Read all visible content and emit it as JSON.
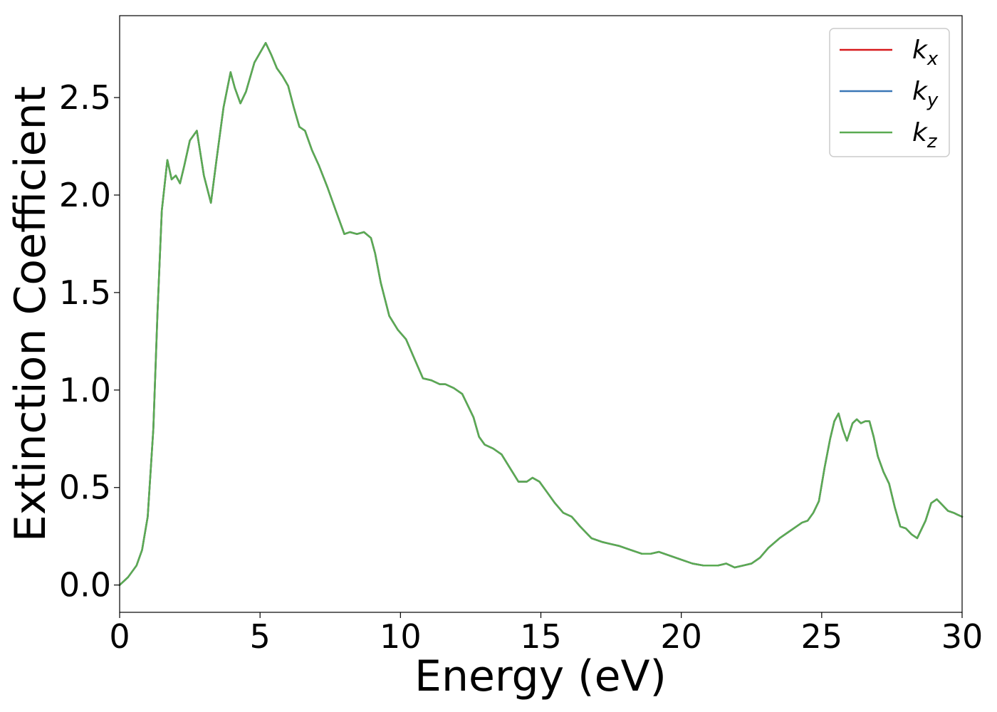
{
  "chart_data": {
    "type": "line",
    "xlabel": "Energy (eV)",
    "ylabel": "Extinction Coefficient",
    "xlim": [
      0,
      30
    ],
    "ylim": [
      -0.14,
      2.92
    ],
    "xticks": [
      0,
      5,
      10,
      15,
      20,
      25,
      30
    ],
    "xtick_labels": [
      "0",
      "5",
      "10",
      "15",
      "20",
      "25",
      "30"
    ],
    "yticks": [
      0.0,
      0.5,
      1.0,
      1.5,
      2.0,
      2.5
    ],
    "ytick_labels": [
      "0.0",
      "0.5",
      "1.0",
      "1.5",
      "2.0",
      "2.5"
    ],
    "grid": false,
    "legend_position": "top-right",
    "x": [
      0,
      0.3,
      0.6,
      0.8,
      1.0,
      1.2,
      1.35,
      1.5,
      1.7,
      1.85,
      2.0,
      2.15,
      2.3,
      2.5,
      2.75,
      3.0,
      3.25,
      3.45,
      3.7,
      3.95,
      4.1,
      4.3,
      4.5,
      4.8,
      5.0,
      5.2,
      5.4,
      5.6,
      5.8,
      6.0,
      6.2,
      6.4,
      6.6,
      6.85,
      7.1,
      7.4,
      7.7,
      8.0,
      8.2,
      8.45,
      8.7,
      8.95,
      9.1,
      9.3,
      9.6,
      9.9,
      10.2,
      10.5,
      10.8,
      11.1,
      11.4,
      11.6,
      11.9,
      12.2,
      12.6,
      12.8,
      13.0,
      13.3,
      13.6,
      13.9,
      14.2,
      14.5,
      14.7,
      14.95,
      15.2,
      15.5,
      15.8,
      16.1,
      16.4,
      16.8,
      17.2,
      17.5,
      17.8,
      18.2,
      18.6,
      18.9,
      19.2,
      19.6,
      20.0,
      20.4,
      20.8,
      21.1,
      21.3,
      21.6,
      21.9,
      22.2,
      22.5,
      22.8,
      23.1,
      23.5,
      23.8,
      24.1,
      24.3,
      24.5,
      24.7,
      24.9,
      25.1,
      25.3,
      25.45,
      25.6,
      25.75,
      25.9,
      26.1,
      26.25,
      26.4,
      26.55,
      26.7,
      26.85,
      27.0,
      27.2,
      27.4,
      27.6,
      27.8,
      28.0,
      28.2,
      28.4,
      28.7,
      28.9,
      29.1,
      29.3,
      29.5,
      29.7,
      29.85,
      30.0
    ],
    "series": [
      {
        "name": "k_x",
        "color": "#d7191c",
        "values": [
          0.0,
          0.04,
          0.1,
          0.18,
          0.35,
          0.8,
          1.4,
          1.92,
          2.18,
          2.08,
          2.1,
          2.06,
          2.15,
          2.28,
          2.33,
          2.1,
          1.96,
          2.18,
          2.45,
          2.63,
          2.55,
          2.47,
          2.53,
          2.68,
          2.73,
          2.78,
          2.72,
          2.65,
          2.61,
          2.56,
          2.45,
          2.35,
          2.33,
          2.23,
          2.15,
          2.04,
          1.92,
          1.8,
          1.81,
          1.8,
          1.81,
          1.78,
          1.7,
          1.55,
          1.38,
          1.31,
          1.26,
          1.16,
          1.06,
          1.05,
          1.03,
          1.03,
          1.01,
          0.98,
          0.86,
          0.76,
          0.72,
          0.7,
          0.67,
          0.6,
          0.53,
          0.53,
          0.55,
          0.53,
          0.48,
          0.42,
          0.37,
          0.35,
          0.3,
          0.24,
          0.22,
          0.21,
          0.2,
          0.18,
          0.16,
          0.16,
          0.17,
          0.15,
          0.13,
          0.11,
          0.1,
          0.1,
          0.1,
          0.11,
          0.09,
          0.1,
          0.11,
          0.14,
          0.19,
          0.24,
          0.27,
          0.3,
          0.32,
          0.33,
          0.37,
          0.43,
          0.6,
          0.75,
          0.84,
          0.88,
          0.8,
          0.74,
          0.83,
          0.85,
          0.83,
          0.84,
          0.84,
          0.76,
          0.66,
          0.58,
          0.52,
          0.4,
          0.3,
          0.29,
          0.26,
          0.24,
          0.33,
          0.42,
          0.44,
          0.41,
          0.38,
          0.37,
          0.36,
          0.35
        ]
      },
      {
        "name": "k_y",
        "color": "#3a77b6",
        "values": [
          0.0,
          0.04,
          0.1,
          0.18,
          0.35,
          0.8,
          1.4,
          1.92,
          2.18,
          2.08,
          2.1,
          2.06,
          2.15,
          2.28,
          2.33,
          2.1,
          1.96,
          2.18,
          2.45,
          2.63,
          2.55,
          2.47,
          2.53,
          2.68,
          2.73,
          2.78,
          2.72,
          2.65,
          2.61,
          2.56,
          2.45,
          2.35,
          2.33,
          2.23,
          2.15,
          2.04,
          1.92,
          1.8,
          1.81,
          1.8,
          1.81,
          1.78,
          1.7,
          1.55,
          1.38,
          1.31,
          1.26,
          1.16,
          1.06,
          1.05,
          1.03,
          1.03,
          1.01,
          0.98,
          0.86,
          0.76,
          0.72,
          0.7,
          0.67,
          0.6,
          0.53,
          0.53,
          0.55,
          0.53,
          0.48,
          0.42,
          0.37,
          0.35,
          0.3,
          0.24,
          0.22,
          0.21,
          0.2,
          0.18,
          0.16,
          0.16,
          0.17,
          0.15,
          0.13,
          0.11,
          0.1,
          0.1,
          0.1,
          0.11,
          0.09,
          0.1,
          0.11,
          0.14,
          0.19,
          0.24,
          0.27,
          0.3,
          0.32,
          0.33,
          0.37,
          0.43,
          0.6,
          0.75,
          0.84,
          0.88,
          0.8,
          0.74,
          0.83,
          0.85,
          0.83,
          0.84,
          0.84,
          0.76,
          0.66,
          0.58,
          0.52,
          0.4,
          0.3,
          0.29,
          0.26,
          0.24,
          0.33,
          0.42,
          0.44,
          0.41,
          0.38,
          0.37,
          0.36,
          0.35
        ]
      },
      {
        "name": "k_z",
        "color": "#5aab52",
        "values": [
          0.0,
          0.04,
          0.1,
          0.18,
          0.35,
          0.8,
          1.4,
          1.92,
          2.18,
          2.08,
          2.1,
          2.06,
          2.15,
          2.28,
          2.33,
          2.1,
          1.96,
          2.18,
          2.45,
          2.63,
          2.55,
          2.47,
          2.53,
          2.68,
          2.73,
          2.78,
          2.72,
          2.65,
          2.61,
          2.56,
          2.45,
          2.35,
          2.33,
          2.23,
          2.15,
          2.04,
          1.92,
          1.8,
          1.81,
          1.8,
          1.81,
          1.78,
          1.7,
          1.55,
          1.38,
          1.31,
          1.26,
          1.16,
          1.06,
          1.05,
          1.03,
          1.03,
          1.01,
          0.98,
          0.86,
          0.76,
          0.72,
          0.7,
          0.67,
          0.6,
          0.53,
          0.53,
          0.55,
          0.53,
          0.48,
          0.42,
          0.37,
          0.35,
          0.3,
          0.24,
          0.22,
          0.21,
          0.2,
          0.18,
          0.16,
          0.16,
          0.17,
          0.15,
          0.13,
          0.11,
          0.1,
          0.1,
          0.1,
          0.11,
          0.09,
          0.1,
          0.11,
          0.14,
          0.19,
          0.24,
          0.27,
          0.3,
          0.32,
          0.33,
          0.37,
          0.43,
          0.6,
          0.75,
          0.84,
          0.88,
          0.8,
          0.74,
          0.83,
          0.85,
          0.83,
          0.84,
          0.84,
          0.76,
          0.66,
          0.58,
          0.52,
          0.4,
          0.3,
          0.29,
          0.26,
          0.24,
          0.33,
          0.42,
          0.44,
          0.41,
          0.38,
          0.37,
          0.36,
          0.35
        ]
      }
    ],
    "legend": [
      {
        "base": "k",
        "sub": "x",
        "color": "#d7191c"
      },
      {
        "base": "k",
        "sub": "y",
        "color": "#3a77b6"
      },
      {
        "base": "k",
        "sub": "z",
        "color": "#5aab52"
      }
    ]
  }
}
